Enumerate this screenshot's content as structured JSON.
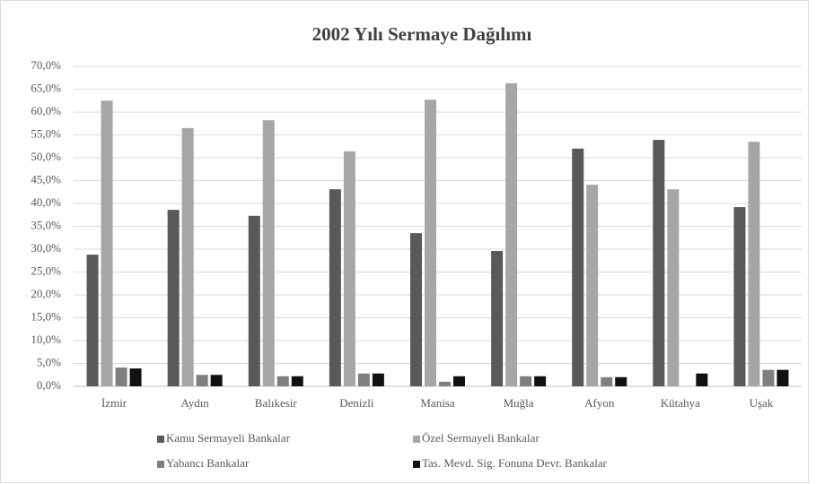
{
  "chart_data": {
    "type": "bar",
    "title": "2002 Yılı Sermaye Dağılımı",
    "categories": [
      "İzmir",
      "Aydın",
      "Balıkesir",
      "Denizli",
      "Manisa",
      "Muğla",
      "Afyon",
      "Kütahya",
      "Uşak"
    ],
    "series": [
      {
        "name": "Kamu Sermayeli Bankalar",
        "color": "#595959",
        "values": [
          28.8,
          38.6,
          37.3,
          43.1,
          33.5,
          29.6,
          52.0,
          53.9,
          39.2
        ]
      },
      {
        "name": "Özel Sermayeli Bankalar",
        "color": "#a6a6a6",
        "values": [
          62.5,
          56.5,
          58.2,
          51.4,
          62.7,
          66.3,
          44.1,
          43.1,
          53.5
        ]
      },
      {
        "name": "Yabancı Bankalar",
        "color": "#7f7f7f",
        "values": [
          4.1,
          2.5,
          2.2,
          2.8,
          1.0,
          2.2,
          2.0,
          0,
          3.6
        ]
      },
      {
        "name": "Tas. Mevd. Sig. Fonuna Devr. Bankalar",
        "color": "#111111",
        "values": [
          3.9,
          2.5,
          2.2,
          2.8,
          2.2,
          2.2,
          2.0,
          2.8,
          3.6
        ]
      }
    ],
    "ylim": [
      0,
      70
    ],
    "yticks": [
      {
        "value": 0,
        "label": "0,0%"
      },
      {
        "value": 5,
        "label": "5,0%"
      },
      {
        "value": 10,
        "label": "10,0%"
      },
      {
        "value": 15,
        "label": "15,0%"
      },
      {
        "value": 20,
        "label": "20,0%"
      },
      {
        "value": 25,
        "label": "25,0%"
      },
      {
        "value": 30,
        "label": "30,0%"
      },
      {
        "value": 35,
        "label": "35,0%"
      },
      {
        "value": 40,
        "label": "40,0%"
      },
      {
        "value": 45,
        "label": "45,0%"
      },
      {
        "value": 50,
        "label": "50,0%"
      },
      {
        "value": 55,
        "label": "55,0%"
      },
      {
        "value": 60,
        "label": "60,0%"
      },
      {
        "value": 65,
        "label": "65,0%"
      },
      {
        "value": 70,
        "label": "70,0%"
      }
    ],
    "grid": true,
    "legend": "bottom"
  }
}
